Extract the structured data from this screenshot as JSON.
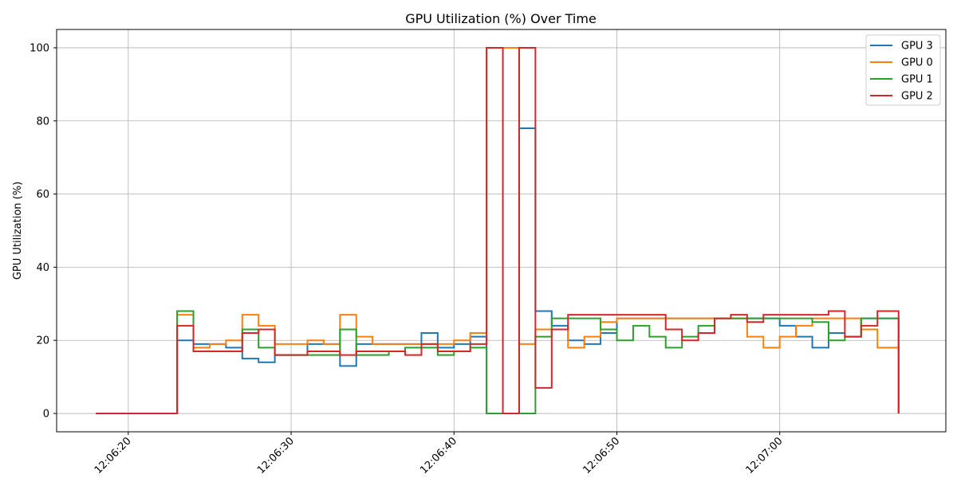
{
  "chart_data": {
    "type": "line",
    "title": "GPU Utilization (%) Over Time",
    "xlabel": "",
    "ylabel": "GPU Utilization (%)",
    "xlim": [
      "12:06:15.6",
      "12:07:10.2"
    ],
    "ylim": [
      -5,
      105
    ],
    "xticks": [
      "12:06:20",
      "12:06:30",
      "12:06:40",
      "12:06:50",
      "12:07:00"
    ],
    "yticks": [
      0,
      20,
      40,
      60,
      80,
      100
    ],
    "grid": true,
    "legend": "top-right",
    "step": "post",
    "series": [
      {
        "name": "GPU 3",
        "color": "#1f77b4",
        "x": [
          "12:06:18",
          "12:06:23",
          "12:06:24",
          "12:06:25",
          "12:06:26",
          "12:06:27",
          "12:06:28",
          "12:06:29",
          "12:06:30",
          "12:06:31",
          "12:06:32",
          "12:06:33",
          "12:06:34",
          "12:06:35",
          "12:06:36",
          "12:06:37",
          "12:06:38",
          "12:06:39",
          "12:06:40",
          "12:06:41",
          "12:06:42",
          "12:06:43",
          "12:06:44",
          "12:06:45",
          "12:06:46",
          "12:06:47",
          "12:06:48",
          "12:06:49",
          "12:06:50",
          "12:06:51",
          "12:06:52",
          "12:06:53",
          "12:06:54",
          "12:06:55",
          "12:06:56",
          "12:06:57",
          "12:06:58",
          "12:06:59",
          "12:07:00",
          "12:07:01",
          "12:07:02",
          "12:07:03",
          "12:07:04",
          "12:07:05",
          "12:07:06",
          "12:07:07",
          "12:07:07.3"
        ],
        "y": [
          0,
          20,
          19,
          19,
          18,
          15,
          14,
          16,
          16,
          19,
          19,
          13,
          19,
          19,
          19,
          19,
          22,
          18,
          19,
          21,
          0,
          0,
          78,
          28,
          24,
          20,
          19,
          22,
          26,
          26,
          26,
          26,
          26,
          26,
          26,
          26,
          26,
          26,
          24,
          21,
          18,
          22,
          21,
          26,
          26,
          26,
          0
        ]
      },
      {
        "name": "GPU 0",
        "color": "#ff7f0e",
        "x": [
          "12:06:18",
          "12:06:23",
          "12:06:24",
          "12:06:25",
          "12:06:26",
          "12:06:27",
          "12:06:28",
          "12:06:29",
          "12:06:30",
          "12:06:31",
          "12:06:32",
          "12:06:33",
          "12:06:34",
          "12:06:35",
          "12:06:36",
          "12:06:37",
          "12:06:38",
          "12:06:39",
          "12:06:40",
          "12:06:41",
          "12:06:42",
          "12:06:43",
          "12:06:44",
          "12:06:45",
          "12:06:46",
          "12:06:47",
          "12:06:48",
          "12:06:49",
          "12:06:50",
          "12:06:51",
          "12:06:52",
          "12:06:53",
          "12:06:54",
          "12:06:55",
          "12:06:56",
          "12:06:57",
          "12:06:58",
          "12:06:59",
          "12:07:00",
          "12:07:01",
          "12:07:02",
          "12:07:03",
          "12:07:04",
          "12:07:05",
          "12:07:06",
          "12:07:07",
          "12:07:07.3"
        ],
        "y": [
          0,
          27,
          18,
          19,
          20,
          27,
          24,
          19,
          19,
          20,
          19,
          27,
          21,
          19,
          19,
          19,
          19,
          19,
          20,
          22,
          100,
          100,
          19,
          23,
          23,
          18,
          21,
          25,
          26,
          26,
          26,
          26,
          26,
          26,
          26,
          26,
          21,
          18,
          21,
          24,
          26,
          26,
          26,
          23,
          18,
          18,
          0
        ]
      },
      {
        "name": "GPU 1",
        "color": "#2ca02c",
        "x": [
          "12:06:18",
          "12:06:23",
          "12:06:24",
          "12:06:25",
          "12:06:26",
          "12:06:27",
          "12:06:28",
          "12:06:29",
          "12:06:30",
          "12:06:31",
          "12:06:32",
          "12:06:33",
          "12:06:34",
          "12:06:35",
          "12:06:36",
          "12:06:37",
          "12:06:38",
          "12:06:39",
          "12:06:40",
          "12:06:41",
          "12:06:42",
          "12:06:43",
          "12:06:44",
          "12:06:45",
          "12:06:46",
          "12:06:47",
          "12:06:48",
          "12:06:49",
          "12:06:50",
          "12:06:51",
          "12:06:52",
          "12:06:53",
          "12:06:54",
          "12:06:55",
          "12:06:56",
          "12:06:57",
          "12:06:58",
          "12:06:59",
          "12:07:00",
          "12:07:01",
          "12:07:02",
          "12:07:03",
          "12:07:04",
          "12:07:05",
          "12:07:06",
          "12:07:07",
          "12:07:07.3"
        ],
        "y": [
          0,
          28,
          17,
          17,
          17,
          23,
          18,
          16,
          16,
          16,
          16,
          23,
          16,
          16,
          17,
          18,
          18,
          16,
          17,
          18,
          0,
          0,
          0,
          21,
          26,
          26,
          26,
          23,
          20,
          24,
          21,
          18,
          21,
          24,
          26,
          26,
          26,
          26,
          26,
          26,
          25,
          20,
          21,
          26,
          26,
          26,
          0
        ]
      },
      {
        "name": "GPU 2",
        "color": "#d62728",
        "x": [
          "12:06:18",
          "12:06:23",
          "12:06:24",
          "12:06:25",
          "12:06:26",
          "12:06:27",
          "12:06:28",
          "12:06:29",
          "12:06:30",
          "12:06:31",
          "12:06:32",
          "12:06:33",
          "12:06:34",
          "12:06:35",
          "12:06:36",
          "12:06:37",
          "12:06:38",
          "12:06:39",
          "12:06:40",
          "12:06:41",
          "12:06:42",
          "12:06:43",
          "12:06:44",
          "12:06:45",
          "12:06:46",
          "12:06:47",
          "12:06:48",
          "12:06:49",
          "12:06:50",
          "12:06:51",
          "12:06:52",
          "12:06:53",
          "12:06:54",
          "12:06:55",
          "12:06:56",
          "12:06:57",
          "12:06:58",
          "12:06:59",
          "12:07:00",
          "12:07:01",
          "12:07:02",
          "12:07:03",
          "12:07:04",
          "12:07:05",
          "12:07:06",
          "12:07:07",
          "12:07:07.3"
        ],
        "y": [
          0,
          24,
          17,
          17,
          17,
          22,
          23,
          16,
          16,
          17,
          17,
          16,
          17,
          17,
          17,
          16,
          19,
          17,
          17,
          19,
          100,
          0,
          100,
          7,
          23,
          27,
          27,
          27,
          27,
          27,
          27,
          23,
          20,
          22,
          26,
          27,
          25,
          27,
          27,
          27,
          27,
          28,
          21,
          24,
          28,
          28,
          0
        ]
      }
    ]
  }
}
